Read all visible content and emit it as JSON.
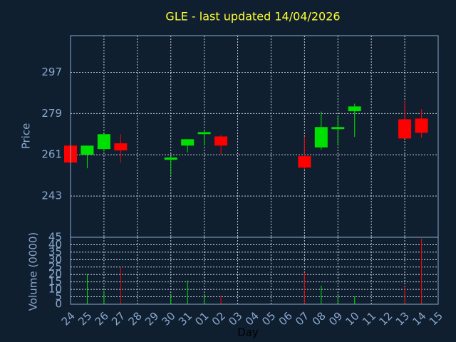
{
  "chart_data": {
    "type": "candlestick",
    "title": "GLE - last updated 14/04/2026",
    "xlabel": "Day",
    "ylabel": "Price",
    "y2label": "Volume (0000)",
    "categories": [
      "24",
      "25",
      "26",
      "27",
      "28",
      "29",
      "30",
      "31",
      "01",
      "02",
      "03",
      "04",
      "05",
      "06",
      "07",
      "08",
      "09",
      "10",
      "11",
      "12",
      "13",
      "14",
      "15"
    ],
    "open": [
      265,
      261,
      263.5,
      266,
      null,
      null,
      258.8,
      265,
      270,
      269,
      null,
      null,
      null,
      null,
      260.4,
      264.2,
      272.2,
      280,
      null,
      null,
      276.5,
      276.8,
      null
    ],
    "high": [
      265,
      265,
      270,
      270,
      null,
      null,
      260.4,
      267.8,
      271.6,
      269.7,
      null,
      null,
      null,
      null,
      269,
      279.9,
      278,
      283.3,
      null,
      null,
      284.6,
      280.9,
      null
    ],
    "low": [
      257.6,
      255.1,
      262.5,
      257.6,
      null,
      null,
      252.3,
      262,
      265,
      261,
      null,
      null,
      null,
      null,
      254.5,
      263.2,
      265,
      268.8,
      null,
      null,
      268.1,
      268.5,
      null
    ],
    "close": [
      257.6,
      265,
      270,
      262.9,
      null,
      null,
      259.8,
      267.8,
      270.9,
      265,
      null,
      null,
      null,
      null,
      255.4,
      273.1,
      273.1,
      282.1,
      null,
      null,
      268.1,
      270.6,
      null
    ],
    "volume": [
      0,
      20.3,
      9.2,
      25,
      null,
      null,
      6.3,
      16,
      6.8,
      5.8,
      null,
      null,
      null,
      null,
      21.3,
      12.6,
      5.3,
      5.3,
      null,
      null,
      12,
      44,
      null
    ],
    "up_color": "#00e000",
    "down_color": "#ff0000",
    "ylim": [
      225,
      313
    ],
    "yticks": [
      243,
      261,
      279,
      297
    ],
    "y2lim": [
      0,
      45
    ],
    "y2ticks": [
      0,
      5,
      10,
      15,
      20,
      25,
      30,
      35,
      40,
      45
    ],
    "grid": true
  }
}
